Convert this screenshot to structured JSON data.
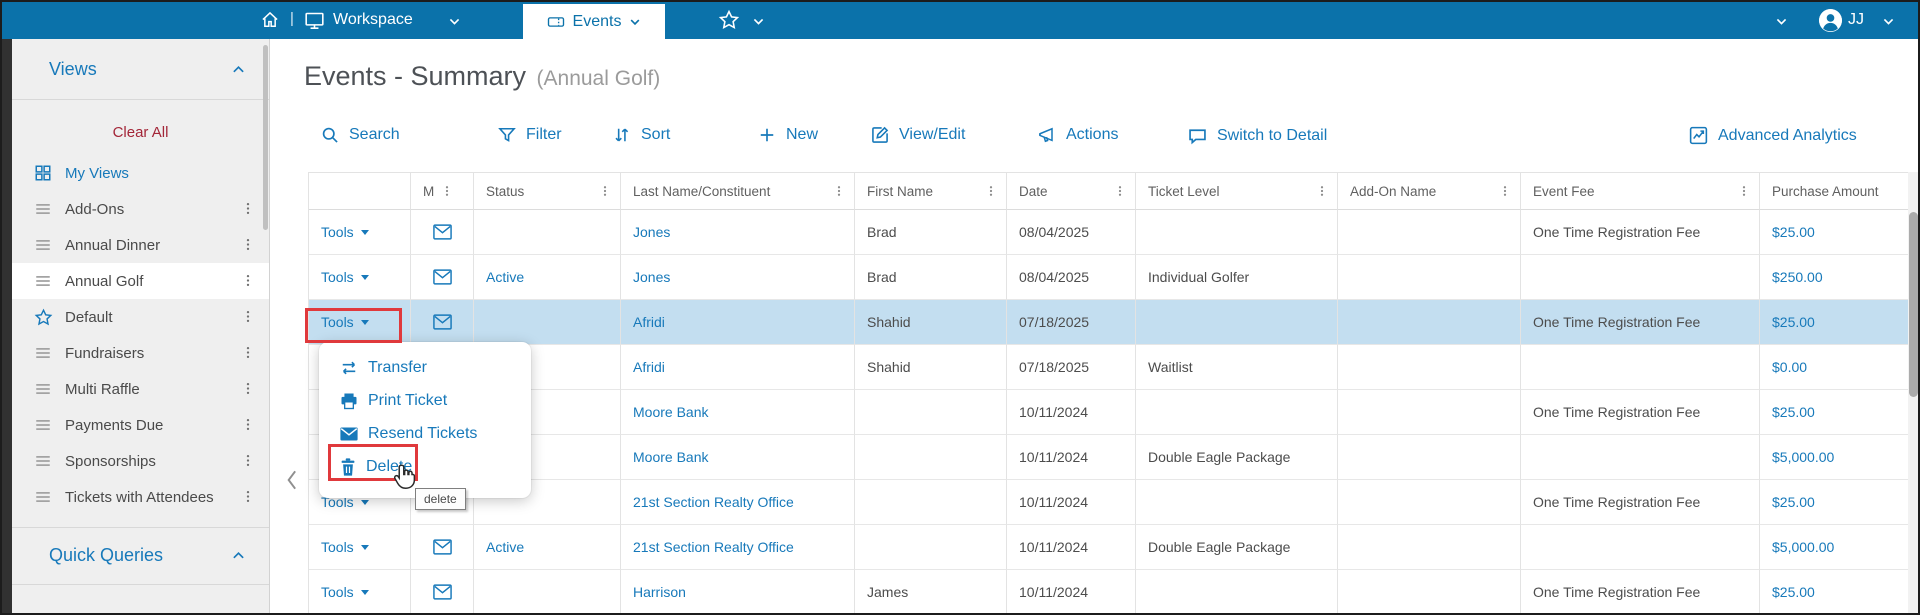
{
  "topbar": {
    "separator": "|",
    "workspace": "Workspace",
    "events_tab": "Events",
    "user": "JJ"
  },
  "sidebar": {
    "header": "Views",
    "clear_all": "Clear All",
    "items": [
      {
        "label": "My Views",
        "icon": "grid-icon"
      },
      {
        "label": "Add-Ons",
        "icon": "list-icon"
      },
      {
        "label": "Annual Dinner",
        "icon": "list-icon"
      },
      {
        "label": "Annual Golf",
        "icon": "list-icon",
        "selected": true
      },
      {
        "label": "Default",
        "icon": "star-icon"
      },
      {
        "label": "Fundraisers",
        "icon": "list-icon"
      },
      {
        "label": "Multi Raffle",
        "icon": "list-icon"
      },
      {
        "label": "Payments Due",
        "icon": "list-icon"
      },
      {
        "label": "Sponsorships",
        "icon": "list-icon"
      },
      {
        "label": "Tickets with Attendees",
        "icon": "list-icon"
      }
    ],
    "quick_queries": "Quick Queries"
  },
  "main": {
    "title": "Events - Summary",
    "subtitle": "(Annual Golf)",
    "toolbar": {
      "search": "Search",
      "filter": "Filter",
      "sort": "Sort",
      "new_item": "New",
      "view_edit": "View/Edit",
      "actions": "Actions",
      "switch_to_detail": "Switch to Detail",
      "advanced_analytics": "Advanced Analytics"
    }
  },
  "table": {
    "tools_label": "Tools",
    "columns": [
      "",
      "M",
      "Status",
      "Last Name/Constituent",
      "First Name",
      "Date",
      "Ticket Level",
      "Add-On Name",
      "Event Fee",
      "Purchase Amount"
    ],
    "rows": [
      {
        "status": "",
        "last_name": "Jones",
        "first_name": "Brad",
        "date": "08/04/2025",
        "ticket_level": "",
        "addon_name": "",
        "event_fee": "One Time Registration Fee",
        "purchase_amount": "$25.00"
      },
      {
        "status": "Active",
        "last_name": "Jones",
        "first_name": "Brad",
        "date": "08/04/2025",
        "ticket_level": "Individual Golfer",
        "addon_name": "",
        "event_fee": "",
        "purchase_amount": "$250.00"
      },
      {
        "status": "",
        "last_name": "Afridi",
        "first_name": "Shahid",
        "date": "07/18/2025",
        "ticket_level": "",
        "addon_name": "",
        "event_fee": "One Time Registration Fee",
        "purchase_amount": "$25.00"
      },
      {
        "status": "",
        "last_name": "Afridi",
        "first_name": "Shahid",
        "date": "07/18/2025",
        "ticket_level": "Waitlist",
        "addon_name": "",
        "event_fee": "",
        "purchase_amount": "$0.00"
      },
      {
        "status": "",
        "last_name": "Moore Bank",
        "first_name": "",
        "date": "10/11/2024",
        "ticket_level": "",
        "addon_name": "",
        "event_fee": "One Time Registration Fee",
        "purchase_amount": "$25.00"
      },
      {
        "status": "",
        "last_name": "Moore Bank",
        "first_name": "",
        "date": "10/11/2024",
        "ticket_level": "Double Eagle Package",
        "addon_name": "",
        "event_fee": "",
        "purchase_amount": "$5,000.00"
      },
      {
        "status": "",
        "last_name": "21st Section Realty Office",
        "first_name": "",
        "date": "10/11/2024",
        "ticket_level": "",
        "addon_name": "",
        "event_fee": "One Time Registration Fee",
        "purchase_amount": "$25.00"
      },
      {
        "status": "Active",
        "last_name": "21st Section Realty Office",
        "first_name": "",
        "date": "10/11/2024",
        "ticket_level": "Double Eagle Package",
        "addon_name": "",
        "event_fee": "",
        "purchase_amount": "$5,000.00"
      },
      {
        "status": "",
        "last_name": "Harrison",
        "first_name": "James",
        "date": "10/11/2024",
        "ticket_level": "",
        "addon_name": "",
        "event_fee": "One Time Registration Fee",
        "purchase_amount": "$25.00"
      }
    ]
  },
  "tools_menu": {
    "items": [
      {
        "label": "Transfer",
        "icon": "transfer-icon"
      },
      {
        "label": "Print Ticket",
        "icon": "printer-icon"
      },
      {
        "label": "Resend Tickets",
        "icon": "envelope-icon"
      },
      {
        "label": "Delete",
        "icon": "trash-icon"
      }
    ],
    "tooltip": "delete"
  },
  "colors": {
    "topbar_blue": "#0b72aa",
    "accent_blue": "#1779ba",
    "clear_all_red": "#a32638",
    "highlight_row": "#c3def0",
    "annotation_red": "#e0393c"
  }
}
